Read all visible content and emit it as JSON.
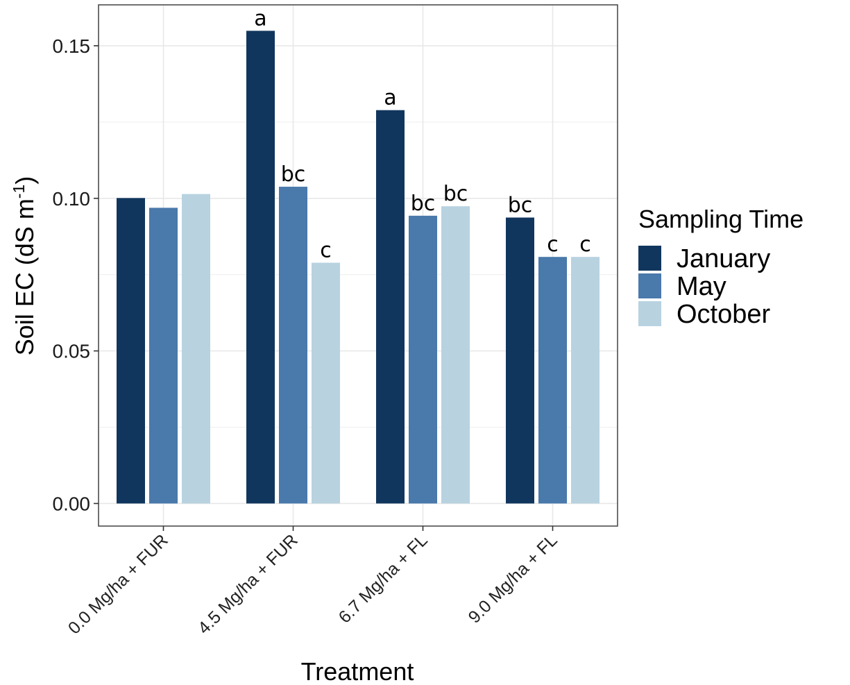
{
  "chart_data": {
    "type": "bar",
    "categories": [
      "0.0 Mg/ha + FUR",
      "4.5 Mg/ha + FUR",
      "6.7 Mg/ha + FL",
      "9.0 Mg/ha + FL"
    ],
    "series": [
      {
        "name": "January",
        "color": "#11365e",
        "values": [
          0.1001,
          0.1549,
          0.1289,
          0.0937
        ],
        "labels": [
          "",
          "a",
          "a",
          "bc"
        ]
      },
      {
        "name": "May",
        "color": "#4a79ab",
        "values": [
          0.0969,
          0.1038,
          0.0943,
          0.0808
        ],
        "labels": [
          "",
          "bc",
          "bc",
          "c"
        ]
      },
      {
        "name": "October",
        "color": "#b8d2e0",
        "values": [
          0.1014,
          0.0789,
          0.0974,
          0.0808
        ],
        "labels": [
          "",
          "c",
          "bc",
          "c"
        ]
      }
    ],
    "xlabel": "Treatment",
    "ylabel": {
      "main": "Soil EC (dS m",
      "superscript": "-1",
      "close": ")"
    },
    "ylim": [
      -0.0074,
      0.1634
    ],
    "yticks": [
      0.0,
      0.05,
      0.1,
      0.15
    ],
    "ytick_labels": [
      "0.00",
      "0.05",
      "0.10",
      "0.15"
    ],
    "grid": true,
    "legend": {
      "title": "Sampling Time",
      "position": "right",
      "items": [
        "January",
        "May",
        "October"
      ]
    }
  }
}
